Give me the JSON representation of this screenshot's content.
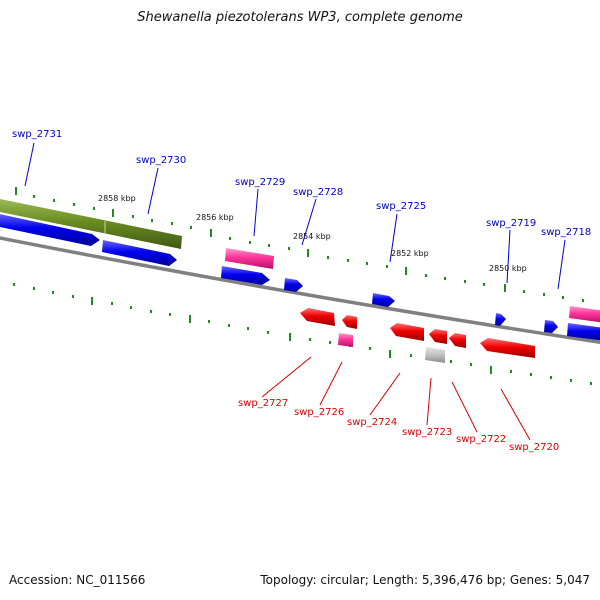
{
  "title": "Shewanella piezotolerans WP3, complete genome",
  "footer": {
    "accession": "Accession: NC_011566",
    "summary": "Topology: circular; Length: 5,396,476 bp; Genes: 5,047"
  },
  "colors": {
    "forward_label": "#0000cc",
    "reverse_label": "#dd0000",
    "forward_gene": "#0000ee",
    "reverse_gene": "#ee0000",
    "pseudo_gene": "#c0c0c0",
    "rna_gene": "#ff3399",
    "region": "#6b8e23",
    "backbone": "#808080",
    "tick": "#228b22"
  },
  "ruler": [
    "2858 kbp",
    "2856 kbp",
    "2854 kbp",
    "2852 kbp",
    "2850 kbp"
  ],
  "forward_labels": [
    "swp_2731",
    "swp_2730",
    "swp_2729",
    "swp_2728",
    "swp_2725",
    "swp_2719",
    "swp_2718"
  ],
  "reverse_labels": [
    "swp_2727",
    "swp_2726",
    "swp_2724",
    "swp_2723",
    "swp_2722",
    "swp_2720"
  ]
}
